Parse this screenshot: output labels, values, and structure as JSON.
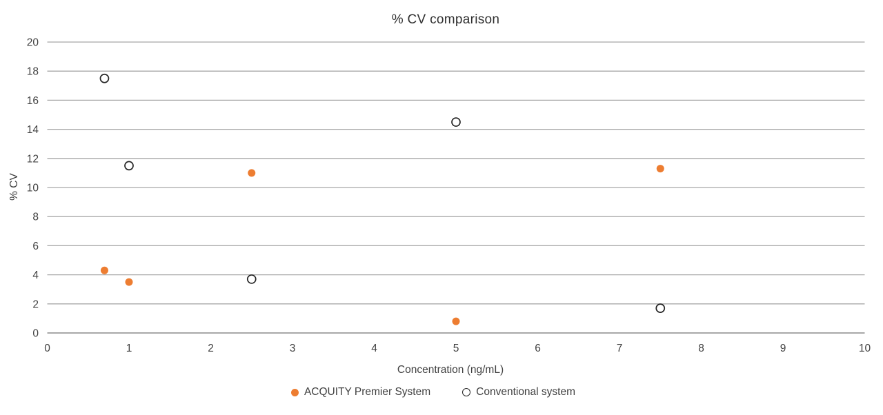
{
  "chart_data": {
    "type": "scatter",
    "title": "% CV comparison",
    "xlabel": "Concentration (ng/mL)",
    "ylabel": "% CV",
    "xlim": [
      0,
      10
    ],
    "ylim": [
      0,
      20
    ],
    "x_ticks": [
      0,
      1,
      2,
      3,
      4,
      5,
      6,
      7,
      8,
      9,
      10
    ],
    "y_ticks": [
      0,
      2,
      4,
      6,
      8,
      10,
      12,
      14,
      16,
      18,
      20
    ],
    "grid": "horizontal-only",
    "legend_position": "bottom-center",
    "series": [
      {
        "name": "ACQUITY Premier System",
        "marker": "filled-circle",
        "color": "#ED7D31",
        "points": [
          [
            0.7,
            4.3
          ],
          [
            1,
            3.5
          ],
          [
            2.5,
            11.0
          ],
          [
            5,
            0.8
          ],
          [
            7.5,
            11.3
          ]
        ]
      },
      {
        "name": "Conventional system",
        "marker": "open-circle",
        "color": "#262626",
        "points": [
          [
            0.7,
            17.5
          ],
          [
            1,
            11.5
          ],
          [
            2.5,
            3.7
          ],
          [
            5,
            14.5
          ],
          [
            7.5,
            1.7
          ]
        ]
      }
    ]
  },
  "colors": {
    "accent_orange": "#ED7D31",
    "marker_outline": "#262626",
    "gridline": "#A8A8A8",
    "axis_text": "#404040",
    "title_text": "#303030"
  }
}
